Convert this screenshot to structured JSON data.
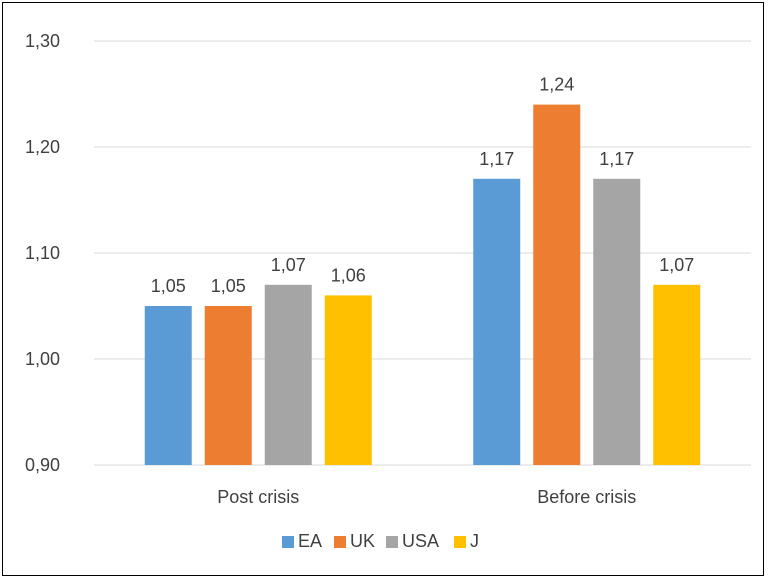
{
  "chart_data": {
    "type": "bar",
    "categories": [
      "Post crisis",
      "Before crisis"
    ],
    "series": [
      {
        "name": "EA",
        "color": "#5B9BD5",
        "values": [
          1.05,
          1.17
        ],
        "labels": [
          "1,05",
          "1,17"
        ]
      },
      {
        "name": "UK",
        "color": "#ED7D31",
        "values": [
          1.05,
          1.24
        ],
        "labels": [
          "1,05",
          "1,24"
        ]
      },
      {
        "name": "USA",
        "color": "#A5A5A5",
        "values": [
          1.07,
          1.17
        ],
        "labels": [
          "1,07",
          "1,17"
        ]
      },
      {
        "name": "J",
        "color": "#FFC000",
        "values": [
          1.06,
          1.07
        ],
        "labels": [
          "1,06",
          "1,07"
        ]
      }
    ],
    "ylim": [
      0.9,
      1.3
    ],
    "yticks": [
      0.9,
      1.0,
      1.1,
      1.2,
      1.3
    ],
    "ytick_labels": [
      "0,90",
      "1,00",
      "1,10",
      "1,20",
      "1,30"
    ],
    "grid": true,
    "legend": "bottom",
    "title": "",
    "xlabel": "",
    "ylabel": ""
  }
}
